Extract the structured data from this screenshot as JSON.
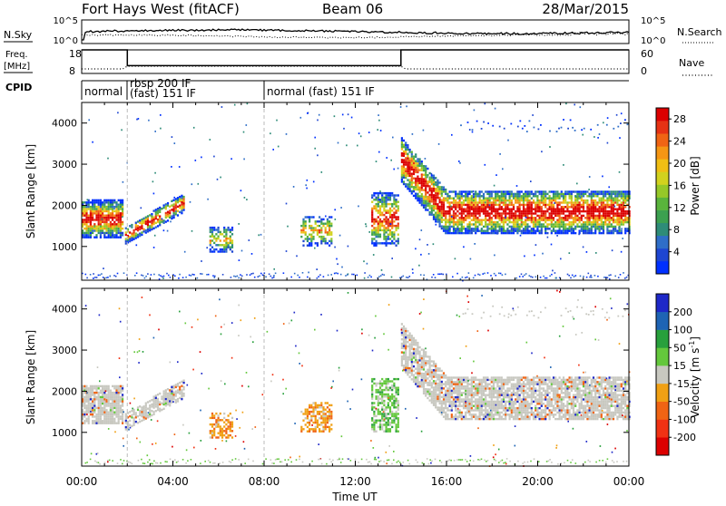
{
  "header": {
    "station": "Fort Hays West (fitACF)",
    "beam": "Beam 06",
    "date": "28/Mar/2015"
  },
  "strips": {
    "nsky_label": "N.Sky",
    "nsearch_label": "N.Search",
    "nsky_ticks": [
      "10^5",
      "10^0"
    ],
    "nsearch_ticks": [
      "10^5",
      "10^0"
    ],
    "freq_label_1": "Freq.",
    "freq_label_2": "[MHz]",
    "freq_ticks": [
      "18",
      "8"
    ],
    "nave_label": "Nave",
    "nave_ticks": [
      "60",
      "0"
    ],
    "cpid_label": "CPID",
    "cpid_segments": [
      {
        "label": "normal",
        "line2": ""
      },
      {
        "label": "rbsp 200 IF",
        "line2": "(fast) 151 IF"
      },
      {
        "label": "normal (fast) 151 IF",
        "line2": ""
      }
    ]
  },
  "time_axis": {
    "xlabel": "Time UT",
    "ticks": [
      "00:00",
      "04:00",
      "08:00",
      "12:00",
      "16:00",
      "20:00",
      "00:00"
    ],
    "hours": [
      0,
      4,
      8,
      12,
      16,
      20,
      24
    ]
  },
  "chart_data": [
    {
      "type": "heatmap",
      "title": "",
      "ylabel": "Slant Range [km]",
      "yticks": [
        "1000",
        "2000",
        "3000",
        "4000"
      ],
      "ytick_values": [
        1000,
        2000,
        3000,
        4000
      ],
      "ylim": [
        180,
        4500
      ],
      "xlim": [
        0,
        24
      ],
      "colorbar": {
        "label": "Power [dB]",
        "ticks": [
          "28",
          "24",
          "20",
          "16",
          "12",
          "8",
          "4"
        ],
        "tick_values": [
          28,
          24,
          20,
          16,
          12,
          8,
          4
        ],
        "range": [
          0,
          30
        ],
        "colors": [
          "#0030ff",
          "#1e46d2",
          "#2f6ec8",
          "#2e8c78",
          "#3ca050",
          "#5ab43c",
          "#96c828",
          "#d2d21e",
          "#f0be14",
          "#f59614",
          "#f06414",
          "#e63214",
          "#dc0000"
        ]
      }
    },
    {
      "type": "heatmap",
      "title": "",
      "ylabel": "Slant Range [km]",
      "yticks": [
        "1000",
        "2000",
        "3000",
        "4000"
      ],
      "ytick_values": [
        1000,
        2000,
        3000,
        4000
      ],
      "ylim": [
        180,
        4500
      ],
      "xlim": [
        0,
        24
      ],
      "colorbar": {
        "label_main": "Velocity [m s",
        "label_sup": "-1",
        "label_end": "]",
        "ticks": [
          "200",
          "100",
          "50",
          "15",
          "-15",
          "-50",
          "-100",
          "-200"
        ],
        "tick_values": [
          200,
          100,
          50,
          15,
          -15,
          -50,
          -100,
          -200
        ],
        "colors": [
          "#1e28c8",
          "#1e64b4",
          "#28a03c",
          "#64c83c",
          "#c8c8c0",
          "#f0a014",
          "#f06414",
          "#f03214",
          "#dc0000"
        ]
      }
    }
  ]
}
